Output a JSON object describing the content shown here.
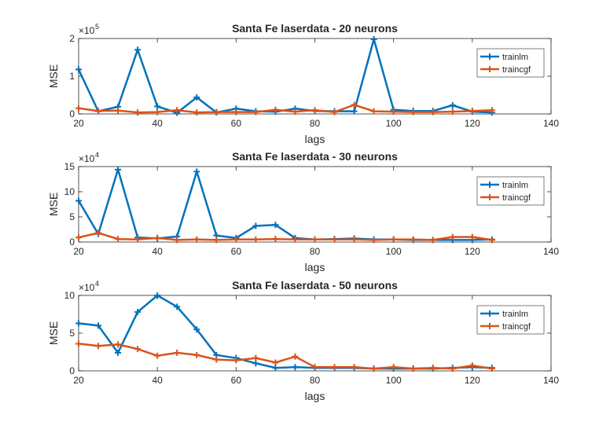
{
  "colors": {
    "trainlm": "#0072bd",
    "traincgf": "#d95319",
    "axes": "#262626",
    "background": "#ffffff"
  },
  "chart_data": [
    {
      "type": "line",
      "title": "Santa Fe laserdata - 20 neurons",
      "xlabel": "lags",
      "ylabel": "MSE",
      "exponent_label": "×10",
      "exponent_power": "5",
      "xlim": [
        20,
        140
      ],
      "ylim": [
        0,
        200000
      ],
      "xticks": [
        "20",
        "40",
        "60",
        "80",
        "100",
        "120",
        "140"
      ],
      "yticks": [
        "0",
        "1",
        "2"
      ],
      "ytick_values": [
        0,
        100000,
        200000
      ],
      "legend_position": "top-right",
      "x": [
        20,
        25,
        30,
        35,
        40,
        45,
        50,
        55,
        60,
        65,
        70,
        75,
        80,
        85,
        90,
        95,
        100,
        105,
        110,
        115,
        120,
        125
      ],
      "series": [
        {
          "name": "trainlm",
          "color": "#0072bd",
          "values": [
            118000,
            7000,
            19000,
            170000,
            20000,
            3000,
            44000,
            4000,
            14000,
            7000,
            6000,
            14000,
            8000,
            7000,
            7000,
            198000,
            11000,
            8000,
            8000,
            23000,
            6000,
            4000
          ]
        },
        {
          "name": "traincgf",
          "color": "#d95319",
          "values": [
            15000,
            8000,
            9000,
            4000,
            5000,
            10000,
            4000,
            5000,
            5000,
            5000,
            11000,
            6000,
            10000,
            5000,
            24000,
            7000,
            6000,
            5000,
            5000,
            6000,
            8000,
            10000
          ]
        }
      ]
    },
    {
      "type": "line",
      "title": "Santa Fe laserdata - 30 neurons",
      "xlabel": "lags",
      "ylabel": "MSE",
      "exponent_label": "×10",
      "exponent_power": "4",
      "xlim": [
        20,
        140
      ],
      "ylim": [
        0,
        150000
      ],
      "xticks": [
        "20",
        "40",
        "60",
        "80",
        "100",
        "120",
        "140"
      ],
      "yticks": [
        "0",
        "5",
        "10",
        "15"
      ],
      "ytick_values": [
        0,
        50000,
        100000,
        150000
      ],
      "legend_position": "top-right",
      "x": [
        20,
        25,
        30,
        35,
        40,
        45,
        50,
        55,
        60,
        65,
        70,
        75,
        80,
        85,
        90,
        95,
        100,
        105,
        110,
        115,
        120,
        125
      ],
      "series": [
        {
          "name": "trainlm",
          "color": "#0072bd",
          "values": [
            82000,
            16000,
            144000,
            9000,
            7000,
            11000,
            140000,
            13000,
            8000,
            32000,
            34000,
            8000,
            5000,
            6000,
            7000,
            5000,
            5000,
            4000,
            4000,
            4000,
            4000,
            5000
          ]
        },
        {
          "name": "traincgf",
          "color": "#d95319",
          "values": [
            9000,
            18000,
            6000,
            5000,
            8000,
            4000,
            5000,
            4000,
            5000,
            5000,
            6000,
            5000,
            5000,
            5000,
            5000,
            4000,
            5000,
            5000,
            4000,
            10000,
            10000,
            4000
          ]
        }
      ]
    },
    {
      "type": "line",
      "title": "Santa Fe laserdata - 50 neurons",
      "xlabel": "lags",
      "ylabel": "MSE",
      "exponent_label": "×10",
      "exponent_power": "4",
      "xlim": [
        20,
        140
      ],
      "ylim": [
        0,
        100000
      ],
      "xticks": [
        "20",
        "40",
        "60",
        "80",
        "100",
        "120",
        "140"
      ],
      "yticks": [
        "0",
        "5",
        "10"
      ],
      "ytick_values": [
        0,
        50000,
        100000
      ],
      "legend_position": "top-right",
      "x": [
        20,
        25,
        30,
        35,
        40,
        45,
        50,
        55,
        60,
        65,
        70,
        75,
        80,
        85,
        90,
        95,
        100,
        105,
        110,
        115,
        120,
        125
      ],
      "series": [
        {
          "name": "trainlm",
          "color": "#0072bd",
          "values": [
            63000,
            60000,
            24000,
            78000,
            100000,
            85000,
            55000,
            21000,
            17000,
            10000,
            4000,
            5000,
            4000,
            4000,
            4000,
            3000,
            3000,
            3000,
            3000,
            4000,
            5000,
            4000
          ]
        },
        {
          "name": "traincgf",
          "color": "#d95319",
          "values": [
            36000,
            33000,
            35000,
            29000,
            20000,
            24000,
            21000,
            15000,
            14000,
            17000,
            11000,
            19000,
            5000,
            5000,
            5000,
            3000,
            5000,
            3000,
            4000,
            3000,
            7000,
            3000
          ]
        }
      ]
    }
  ]
}
